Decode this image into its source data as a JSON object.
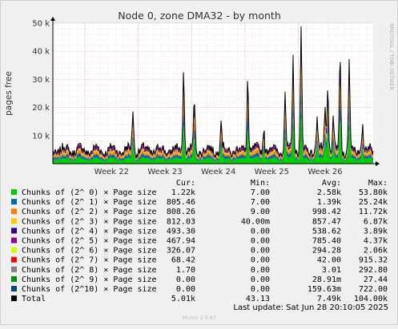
{
  "chart_data": {
    "type": "area",
    "title": "Node 0, zone DMA32 - by month",
    "ylabel": "pages free",
    "side_label": "RRDTOOL / TOBI OETIKER",
    "ylim": [
      0,
      50000
    ],
    "y_ticks": [
      0,
      10000,
      20000,
      30000,
      40000,
      50000
    ],
    "y_tick_labels": [
      "",
      "10 k",
      "20 k",
      "30 k",
      "40 k",
      "50 k"
    ],
    "x_ticks": [
      "Week 22",
      "Week 23",
      "Week 24",
      "Week 25",
      "Week 26"
    ],
    "grid": true,
    "legend_headers": [
      "Cur:",
      "Min:",
      "Avg:",
      "Max:"
    ],
    "series": [
      {
        "name": "Chunks of (2^ 0) × Page size",
        "color": "#00cc00",
        "cur": "1.22k",
        "min": "7.00",
        "avg": "2.58k",
        "max": "53.80k",
        "base": 1900
      },
      {
        "name": "Chunks of (2^ 1) × Page size",
        "color": "#0066b3",
        "cur": "805.46",
        "min": "7.00",
        "avg": "1.39k",
        "max": "25.24k",
        "base": 1000
      },
      {
        "name": "Chunks of (2^ 2) × Page size",
        "color": "#ff8000",
        "cur": "808.26",
        "min": "9.00",
        "avg": "998.42",
        "max": "11.72k",
        "base": 750
      },
      {
        "name": "Chunks of (2^ 3) × Page size",
        "color": "#ffcc00",
        "cur": "812.03",
        "min": "40.00m",
        "avg": "857.47",
        "max": "6.87k",
        "base": 650
      },
      {
        "name": "Chunks of (2^ 4) × Page size",
        "color": "#330099",
        "cur": "493.30",
        "min": "0.00",
        "avg": "538.62",
        "max": "3.89k",
        "base": 420
      },
      {
        "name": "Chunks of (2^ 5) × Page size",
        "color": "#990099",
        "cur": "467.94",
        "min": "0.00",
        "avg": "785.40",
        "max": "4.37k",
        "base": 600
      },
      {
        "name": "Chunks of (2^ 6) × Page size",
        "color": "#ccff00",
        "cur": "326.07",
        "min": "0.00",
        "avg": "294.28",
        "max": "2.06k",
        "base": 230
      },
      {
        "name": "Chunks of (2^ 7) × Page size",
        "color": "#ff0000",
        "cur": "68.42",
        "min": "0.00",
        "avg": "42.00",
        "max": "915.32",
        "base": 35
      },
      {
        "name": "Chunks of (2^ 8) × Page size",
        "color": "#808080",
        "cur": "1.70",
        "min": "0.00",
        "avg": "3.01",
        "max": "292.80",
        "base": 3
      },
      {
        "name": "Chunks of (2^ 9) × Page size",
        "color": "#008f00",
        "cur": "0.00",
        "min": "0.00",
        "avg": "28.91m",
        "max": "27.44",
        "base": 0
      },
      {
        "name": "Chunks of (2^10) × Page size",
        "color": "#00487d",
        "cur": "0.00",
        "min": "0.00",
        "avg": "159.63m",
        "max": "722.00",
        "base": 0
      }
    ],
    "total": {
      "name": "Total",
      "color": "#000000",
      "cur": "5.01k",
      "min": "43.13",
      "avg": "7.49k",
      "max": "104.00k"
    },
    "spikes": [
      {
        "week": 22.9,
        "total": 19500
      },
      {
        "week": 23.85,
        "total": 33000
      },
      {
        "week": 24.05,
        "total": 22000
      },
      {
        "week": 24.55,
        "total": 16000
      },
      {
        "week": 25.05,
        "total": 31000
      },
      {
        "week": 25.35,
        "total": 14000
      },
      {
        "week": 25.75,
        "total": 25000
      },
      {
        "week": 25.9,
        "total": 37000
      },
      {
        "week": 26.05,
        "total": 45500
      },
      {
        "week": 26.35,
        "total": 17000
      },
      {
        "week": 26.5,
        "total": 20000
      },
      {
        "week": 26.55,
        "total": 27000
      },
      {
        "week": 26.65,
        "total": 15000
      },
      {
        "week": 26.78,
        "total": 38000
      },
      {
        "week": 26.95,
        "total": 35000
      },
      {
        "week": 27.2,
        "total": 14000
      }
    ]
  },
  "footer": {
    "last_update": "Last update: Sat Jun 28 20:10:05 2025",
    "version": "Munin 2.0.67"
  }
}
